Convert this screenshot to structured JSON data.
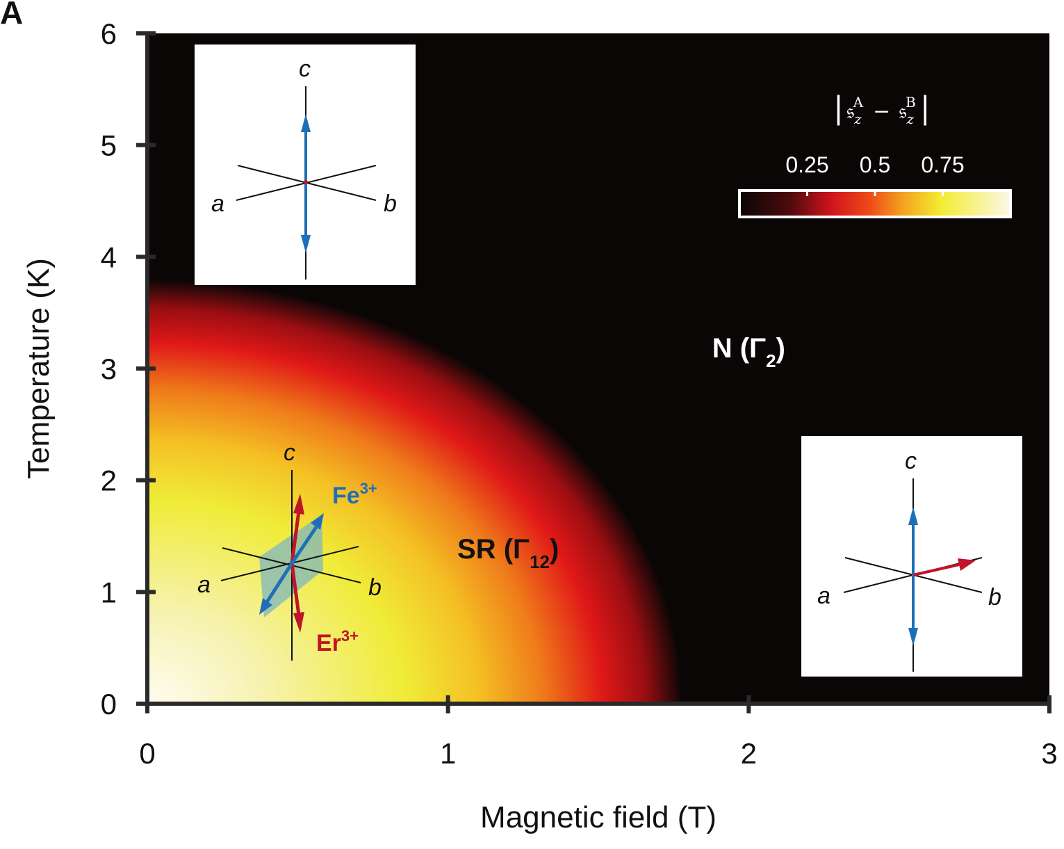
{
  "panel_label": "A",
  "colors": {
    "fe_arrow": "#1f6fb8",
    "er_arrow": "#c0142a",
    "fe_label": "#1f6fb8",
    "er_label": "#c0142a",
    "background_phase": "#0a0606",
    "canting_plane": "#7fb7c0"
  },
  "chart_data": {
    "type": "heatmap",
    "title": "",
    "xlabel": "Magnetic field (T)",
    "ylabel": "Temperature (K)",
    "xlim": [
      0,
      3
    ],
    "ylim": [
      0,
      6
    ],
    "x_ticks": [
      0,
      1,
      2,
      3
    ],
    "y_ticks": [
      0,
      1,
      2,
      3,
      4,
      5,
      6
    ],
    "x_tick_labels": [
      "0",
      "1",
      "2",
      "3"
    ],
    "y_tick_labels": [
      "0",
      "1",
      "2",
      "3",
      "4",
      "5",
      "6"
    ],
    "colormap": "black-red-yellow-white",
    "colorbar": {
      "title_parts": {
        "s": "𝔰",
        "sub": "z",
        "sup_a": "A",
        "sup_b": "B",
        "minus": "−",
        "bar": "|"
      },
      "range": [
        0,
        1
      ],
      "ticks": [
        0.25,
        0.5,
        0.75
      ],
      "tick_labels": [
        "0.25",
        "0.5",
        "0.75"
      ]
    },
    "phase_boundary": {
      "Hc_at_T0": 1.78,
      "Tc_at_H0": 3.8
    },
    "regions": [
      {
        "name": "SR",
        "symbol": "Γ",
        "subscript": "12",
        "H": 1.2,
        "T": 1.3
      },
      {
        "name": "N",
        "symbol": "Γ",
        "subscript": "2",
        "H": 2.0,
        "T": 3.1
      }
    ]
  },
  "insets": {
    "top_left": {
      "c": "c",
      "a": "a",
      "b": "b"
    },
    "middle": {
      "c": "c",
      "a": "a",
      "b": "b",
      "fe": "Fe",
      "fe_sup": "3+",
      "er": "Er",
      "er_sup": "3+"
    },
    "bottom_right": {
      "c": "c",
      "a": "a",
      "b": "b"
    }
  }
}
